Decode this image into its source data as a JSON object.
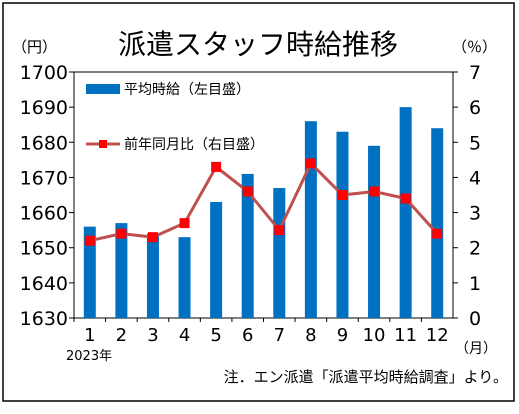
{
  "chart_data": {
    "type": "bar+line",
    "title": "派遣スタッフ時給推移",
    "y_left_unit": "（円）",
    "y_right_unit": "（％）",
    "x_unit": "（月）",
    "year_label": "2023年",
    "categories": [
      "1",
      "2",
      "3",
      "4",
      "5",
      "6",
      "7",
      "8",
      "9",
      "10",
      "11",
      "12"
    ],
    "ylim_left": [
      1630,
      1700
    ],
    "ylim_right": [
      0,
      7
    ],
    "left_ticks": [
      "1630",
      "1640",
      "1650",
      "1660",
      "1670",
      "1680",
      "1690",
      "1700"
    ],
    "right_ticks": [
      "0",
      "1",
      "2",
      "3",
      "4",
      "5",
      "6",
      "7"
    ],
    "series": [
      {
        "name": "平均時給（左目盛）",
        "axis": "left",
        "type": "bar",
        "color": "#0070C0",
        "values": [
          1656,
          1657,
          1654,
          1653,
          1663,
          1671,
          1667,
          1686,
          1683,
          1679,
          1690,
          1684
        ]
      },
      {
        "name": "前年同月比（右目盛）",
        "axis": "right",
        "type": "line",
        "color": "#C0504D",
        "marker_color": "#FF0000",
        "values": [
          2.2,
          2.4,
          2.3,
          2.7,
          4.3,
          3.6,
          2.5,
          4.4,
          3.5,
          3.6,
          3.4,
          2.4
        ]
      }
    ],
    "note": "注．エン派遣「派遣平均時給調査」より。",
    "legend_position": "top-left",
    "grid": false
  }
}
